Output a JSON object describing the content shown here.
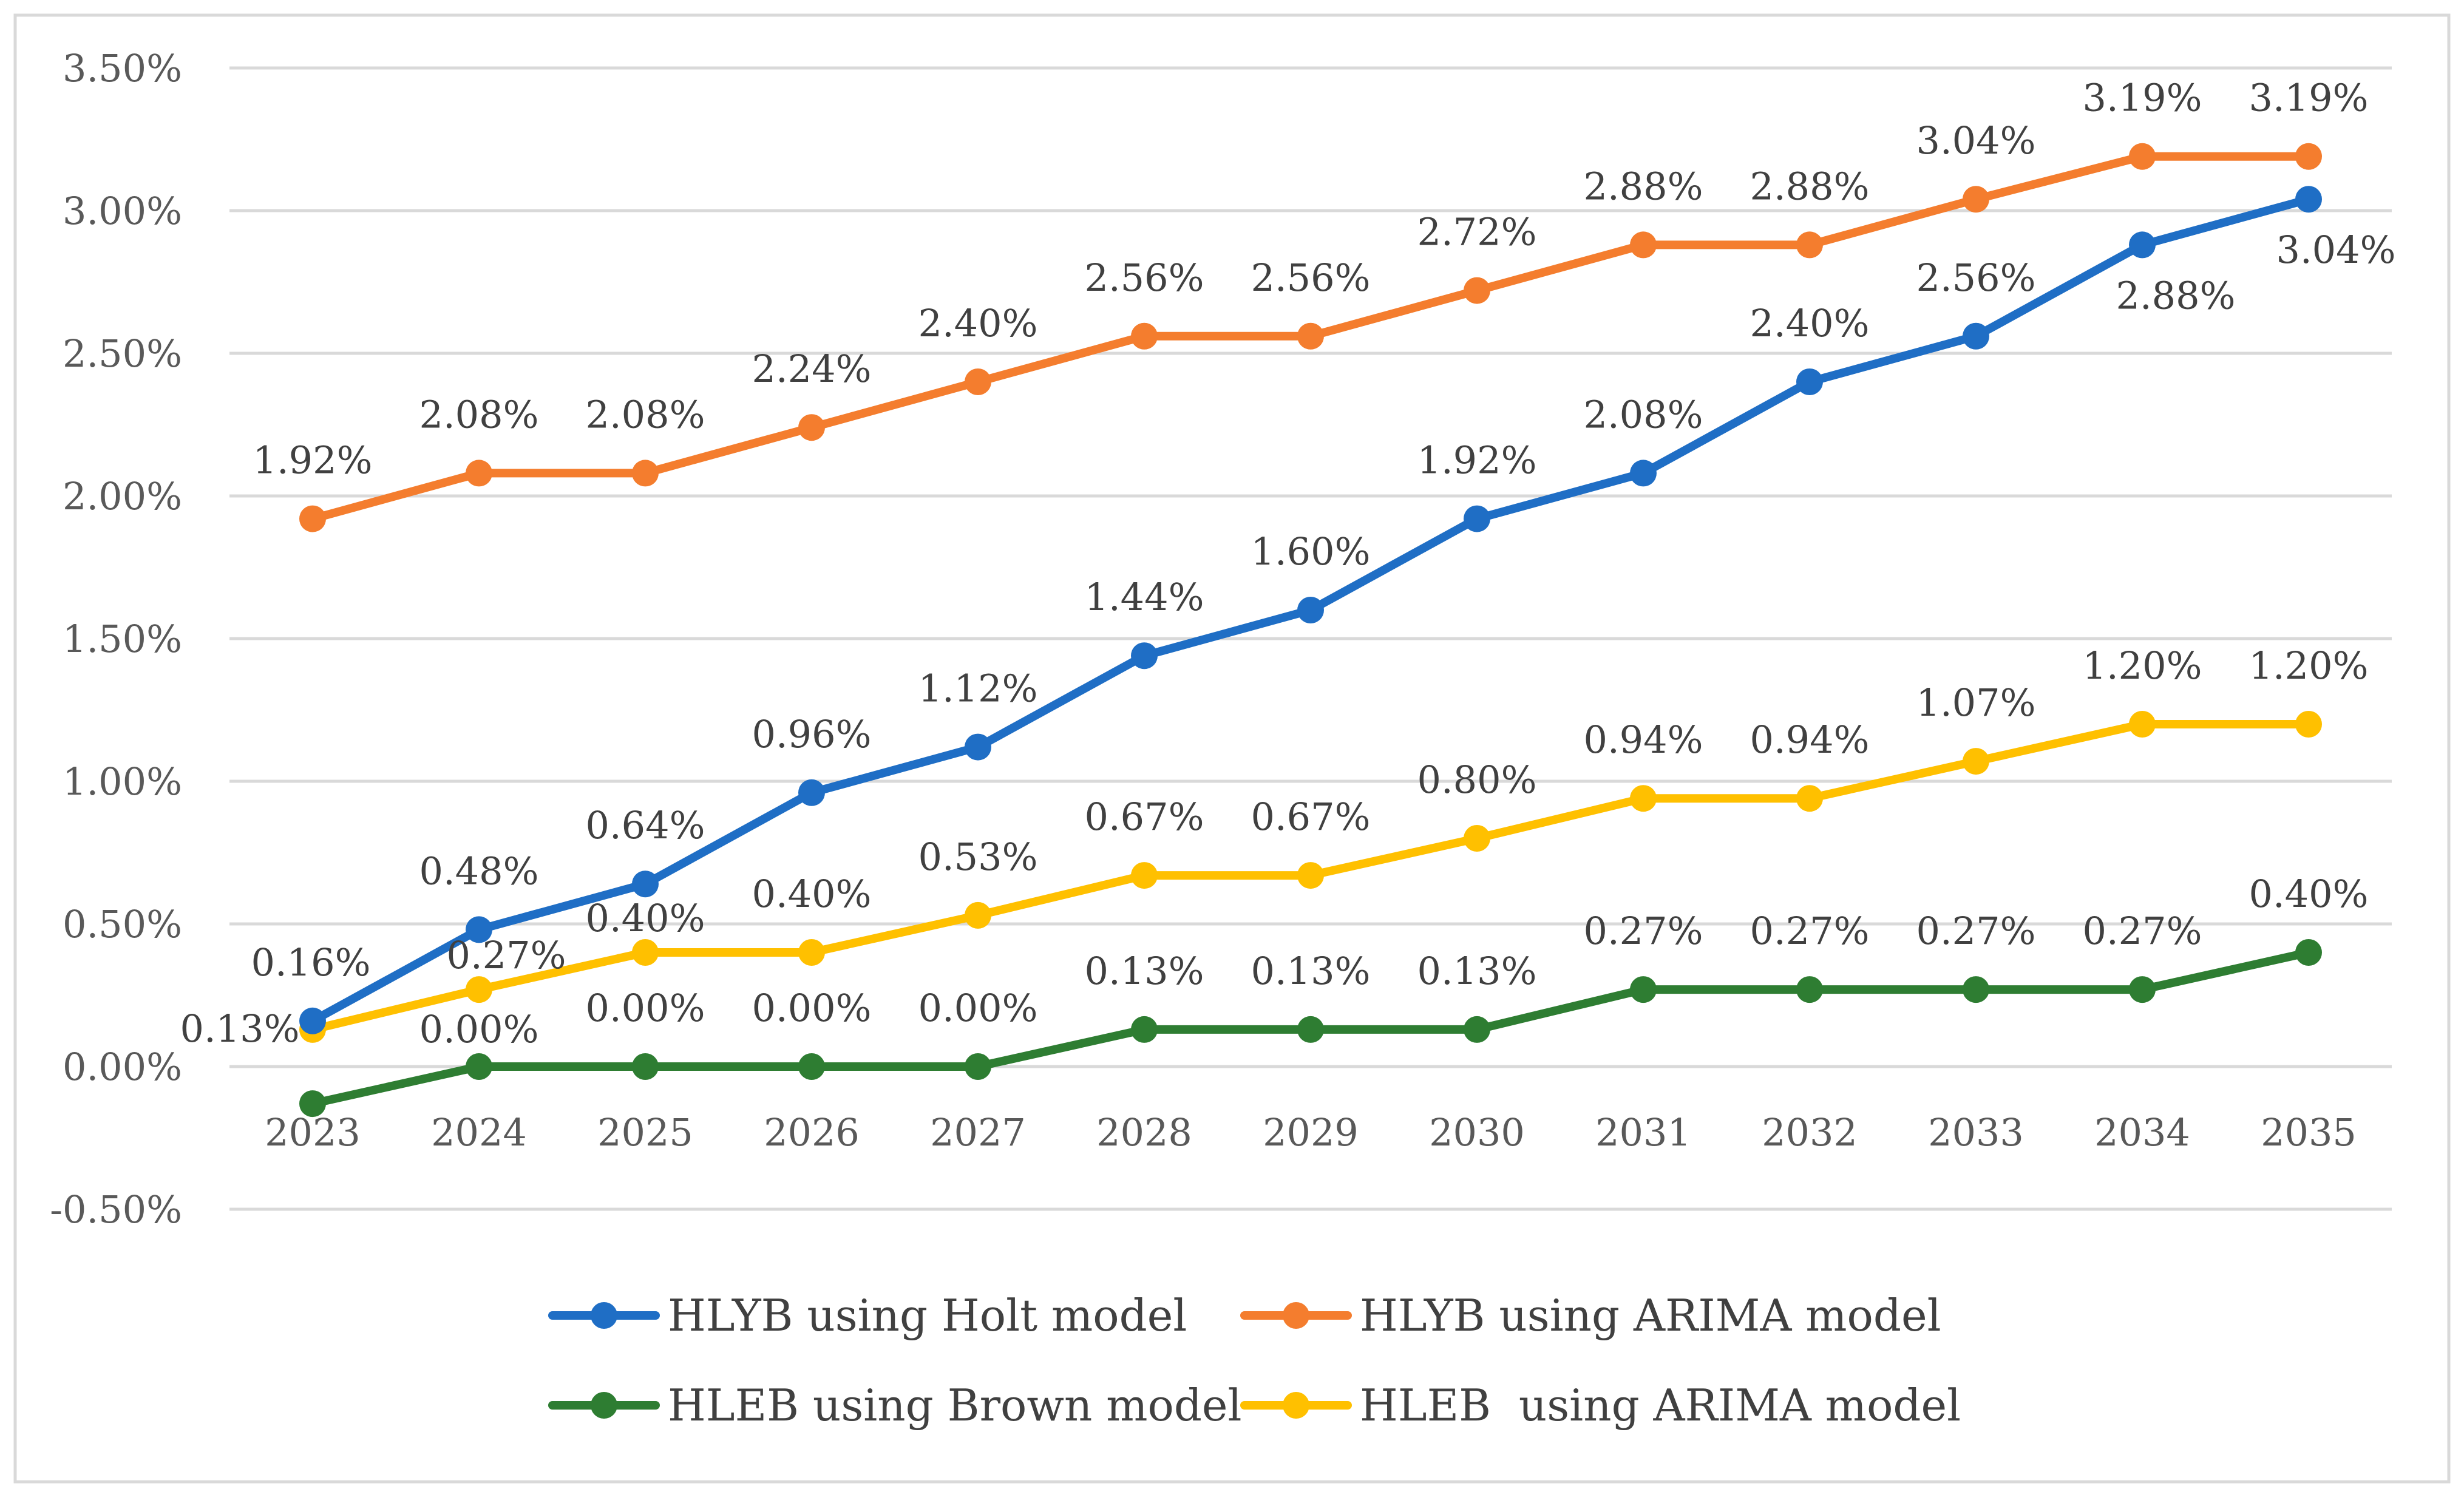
{
  "chart_data": {
    "type": "line",
    "title": "",
    "xlabel": "",
    "ylabel": "",
    "categories": [
      "2023",
      "2024",
      "2025",
      "2026",
      "2027",
      "2028",
      "2029",
      "2030",
      "2031",
      "2032",
      "2033",
      "2034",
      "2035"
    ],
    "ylim": [
      -0.5,
      3.5
    ],
    "y_ticks": [
      3.5,
      3.0,
      2.5,
      2.0,
      1.5,
      1.0,
      0.5,
      0.0,
      -0.5
    ],
    "y_tick_labels": [
      "3.50%",
      "3.00%",
      "2.50%",
      "2.00%",
      "1.50%",
      "1.00%",
      "0.50%",
      "0.00%",
      "-0.50%"
    ],
    "grid": true,
    "legend_position": "bottom",
    "series": [
      {
        "name": "HLYB using Holt model",
        "color": "#1f6ec5",
        "values": [
          0.16,
          0.48,
          0.64,
          0.96,
          1.12,
          1.44,
          1.6,
          1.92,
          2.08,
          2.4,
          2.56,
          2.88,
          3.04
        ],
        "labels": [
          "0.16%",
          "0.48%",
          "0.64%",
          "0.96%",
          "1.12%",
          "1.44%",
          "1.60%",
          "1.92%",
          "2.08%",
          "2.40%",
          "2.56%",
          "2.88%",
          "3.04%"
        ]
      },
      {
        "name": "HLYB using ARIMA model",
        "color": "#f47d2e",
        "values": [
          1.92,
          2.08,
          2.08,
          2.24,
          2.4,
          2.56,
          2.56,
          2.72,
          2.88,
          2.88,
          3.04,
          3.19,
          3.19
        ],
        "labels": [
          "1.92%",
          "2.08%",
          "2.08%",
          "2.24%",
          "2.40%",
          "2.56%",
          "2.56%",
          "2.72%",
          "2.88%",
          "2.88%",
          "3.04%",
          "3.19%",
          "3.19%"
        ]
      },
      {
        "name": "HLEB using Brown model",
        "color": "#2e7d32",
        "values": [
          -0.13,
          0.0,
          0.0,
          0.0,
          0.0,
          0.13,
          0.13,
          0.13,
          0.27,
          0.27,
          0.27,
          0.27,
          0.4
        ],
        "labels": [
          "",
          "0.00%",
          "0.00%",
          "0.00%",
          "0.00%",
          "0.13%",
          "0.13%",
          "0.13%",
          "0.27%",
          "0.27%",
          "0.27%",
          "0.27%",
          "0.40%"
        ]
      },
      {
        "name": "HLEB  using ARIMA model",
        "color": "#ffc000",
        "values": [
          0.13,
          0.27,
          0.4,
          0.4,
          0.53,
          0.67,
          0.67,
          0.8,
          0.94,
          0.94,
          1.07,
          1.2,
          1.2
        ],
        "labels": [
          "0.13%",
          "0.27%",
          "0.40%",
          "0.40%",
          "0.53%",
          "0.67%",
          "0.67%",
          "0.80%",
          "0.94%",
          "0.94%",
          "1.07%",
          "1.20%",
          "1.20%"
        ]
      }
    ]
  }
}
